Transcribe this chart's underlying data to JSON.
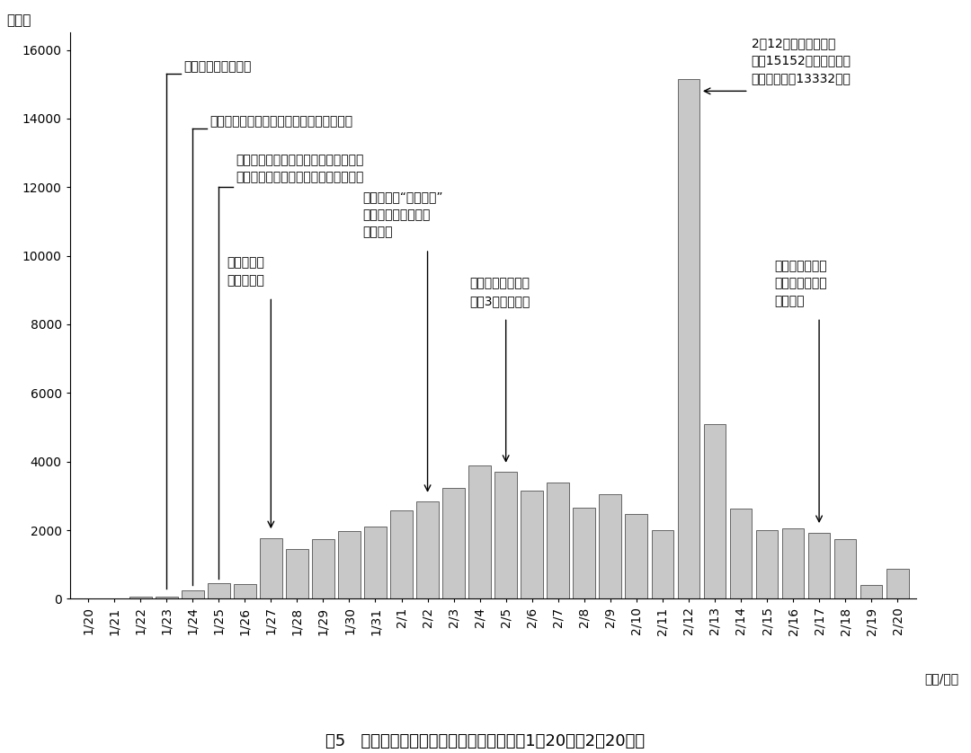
{
  "dates": [
    "1/20",
    "1/21",
    "1/22",
    "1/23",
    "1/24",
    "1/25",
    "1/26",
    "1/27",
    "1/28",
    "1/29",
    "1/30",
    "1/31",
    "2/1",
    "2/2",
    "2/3",
    "2/4",
    "2/5",
    "2/6",
    "2/7",
    "2/8",
    "2/9",
    "2/10",
    "2/11",
    "2/12",
    "2/13",
    "2/14",
    "2/15",
    "2/16",
    "2/17",
    "2/18",
    "2/19",
    "2/20"
  ],
  "values": [
    20,
    17,
    59,
    77,
    260,
    469,
    444,
    1771,
    1459,
    1737,
    1980,
    2101,
    2590,
    2829,
    3235,
    3887,
    3694,
    3143,
    3399,
    2656,
    3062,
    2478,
    2015,
    15152,
    5090,
    2641,
    2009,
    2048,
    1933,
    1749,
    394,
    889
  ],
  "bar_color": "#c8c8c8",
  "bar_edgecolor": "#666666",
  "background_color": "#ffffff",
  "ylabel": "（例）",
  "xlabel": "（月/日）",
  "ylim": [
    0,
    16500
  ],
  "yticks": [
    0,
    2000,
    4000,
    6000,
    8000,
    10000,
    12000,
    14000,
    16000
  ],
  "title": "图5   中国境内新冠肌炎新增确诊病例情况（1月20日至2月20日）"
}
